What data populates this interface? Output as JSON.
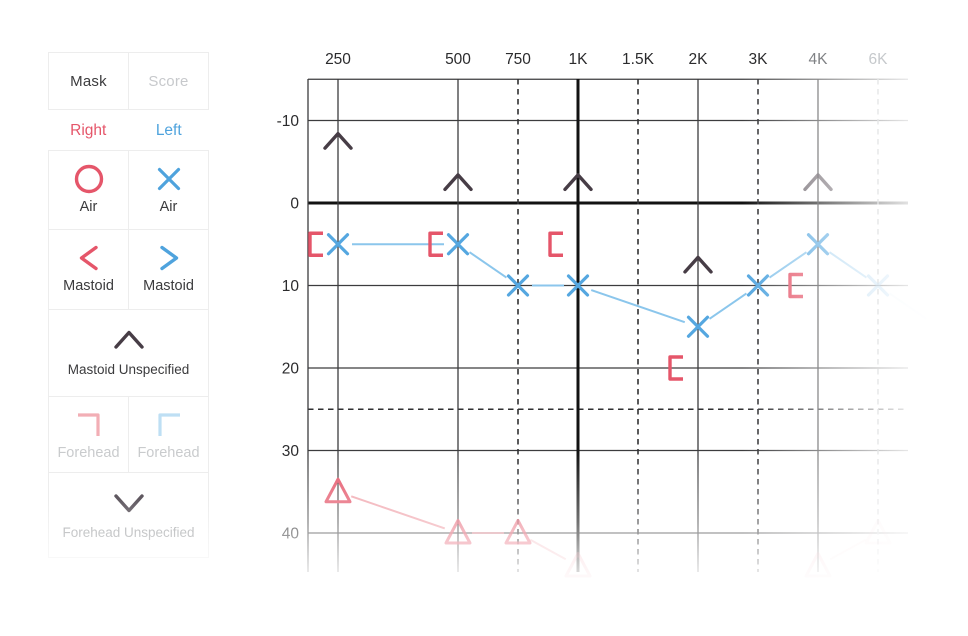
{
  "sidebar": {
    "tabs": [
      {
        "label": "Mask",
        "active": true
      },
      {
        "label": "Score",
        "active": false
      }
    ],
    "ear_headers": [
      {
        "label": "Right",
        "color": "#e5566a"
      },
      {
        "label": "Left",
        "color": "#4fa3dd"
      }
    ],
    "rows": [
      {
        "type": "pair",
        "cells": [
          {
            "icon": "circle-icon",
            "color": "#e5566a",
            "label": "Air"
          },
          {
            "icon": "x-icon",
            "color": "#4fa3dd",
            "label": "Air"
          }
        ]
      },
      {
        "type": "pair",
        "cells": [
          {
            "icon": "chevron-left-icon",
            "color": "#e5566a",
            "label": "Mastoid"
          },
          {
            "icon": "chevron-right-icon",
            "color": "#4fa3dd",
            "label": "Mastoid"
          }
        ]
      },
      {
        "type": "single",
        "icon": "chevron-up-icon",
        "color": "#473d46",
        "label": "Mastoid Unspecified",
        "label_style": ""
      },
      {
        "type": "pair",
        "disabled": true,
        "cells": [
          {
            "icon": "corner-top-right-icon",
            "color": "#f2aeb5",
            "label": "Forehead",
            "muted": true
          },
          {
            "icon": "corner-top-left-icon",
            "color": "#bedff4",
            "label": "Forehead",
            "muted": true
          }
        ]
      },
      {
        "type": "single",
        "icon": "chevron-down-icon",
        "color": "#5f5860",
        "label": "Forehead Unspecified",
        "label_style": "semi"
      }
    ]
  },
  "chart_data": {
    "type": "scatter",
    "title": "",
    "x_axis": {
      "unit": "Hz",
      "labels": [
        "250",
        "500",
        "750",
        "1K",
        "1.5K",
        "2K",
        "3K",
        "4K",
        "6K"
      ],
      "octaves": [
        0,
        1,
        1.5,
        2,
        2.5,
        3,
        3.5,
        4,
        4.5
      ],
      "line_styles": [
        "solid",
        "solid",
        "dashed",
        "bold",
        "dashed",
        "solid",
        "dashed",
        "solid",
        "dashed-faint"
      ],
      "label_colors": [
        "#2b2b2d",
        "#2b2b2d",
        "#2b2b2d",
        "#2b2b2d",
        "#2b2b2d",
        "#2b2b2d",
        "#2b2b2d",
        "#808285",
        "#c6c9cc"
      ]
    },
    "y_axis": {
      "unit": "dB",
      "direction": "down",
      "range": [
        -15,
        50
      ],
      "ticks": [
        {
          "db": -15,
          "label": "",
          "style": "solid"
        },
        {
          "db": -10,
          "label": "-10",
          "style": "solid"
        },
        {
          "db": 0,
          "label": "0",
          "style": "bold"
        },
        {
          "db": 10,
          "label": "10",
          "style": "solid"
        },
        {
          "db": 20,
          "label": "20",
          "style": "solid"
        },
        {
          "db": 25,
          "label": "",
          "style": "dashed"
        },
        {
          "db": 30,
          "label": "30",
          "style": "solid"
        },
        {
          "db": 40,
          "label": "40",
          "style": "solid"
        }
      ]
    },
    "series": [
      {
        "name": "left-ear-air",
        "marker": "x-icon",
        "color": "#55a7e0",
        "line_color": "#8bc6ec",
        "points": [
          {
            "f": "250",
            "db": 5
          },
          {
            "f": "500",
            "db": 5
          },
          {
            "f": "750",
            "db": 10
          },
          {
            "f": "1K",
            "db": 10
          },
          {
            "f": "2K",
            "db": 15
          },
          {
            "f": "3K",
            "db": 10
          },
          {
            "f": "4K",
            "db": 5
          },
          {
            "f": "6K",
            "db": 10,
            "opacity": 0.45
          }
        ],
        "tail": {
          "octave": 5.0,
          "db": 15,
          "opacity": 0.14
        }
      },
      {
        "name": "right-ear-bone-masked",
        "marker": "left-bracket-icon",
        "color": "#e5566a",
        "offset_x": -22,
        "points": [
          {
            "f": "250",
            "db": 5
          },
          {
            "f": "500",
            "db": 5
          },
          {
            "f": "1K",
            "db": 5
          },
          {
            "f": "2K",
            "db": 20
          },
          {
            "f": "4K",
            "db": 10
          }
        ]
      },
      {
        "name": "mastoid-unspecified",
        "marker": "chevron-up-icon",
        "color": "#473d46",
        "points": [
          {
            "f": "250",
            "db": -7.5
          },
          {
            "f": "500",
            "db": -2.5
          },
          {
            "f": "1K",
            "db": -2.5
          },
          {
            "f": "2K",
            "db": 7.5
          },
          {
            "f": "4K",
            "db": -2.5,
            "opacity": 0.8
          }
        ]
      },
      {
        "name": "right-ear-triangle",
        "marker": "triangle-icon",
        "color": "#e5566a",
        "line_color": "#ef98a1",
        "points": [
          {
            "f": "250",
            "db": 35
          },
          {
            "f": "500",
            "db": 40,
            "opacity": 0.8
          },
          {
            "f": "750",
            "db": 40,
            "opacity": 0.75
          },
          {
            "f": "1K",
            "db": 44,
            "opacity": 0.3
          },
          {
            "f": "4K",
            "db": 44,
            "opacity": 0.25,
            "gap": true
          },
          {
            "f": "6K",
            "db": 40,
            "opacity": 0.12
          }
        ]
      }
    ]
  }
}
